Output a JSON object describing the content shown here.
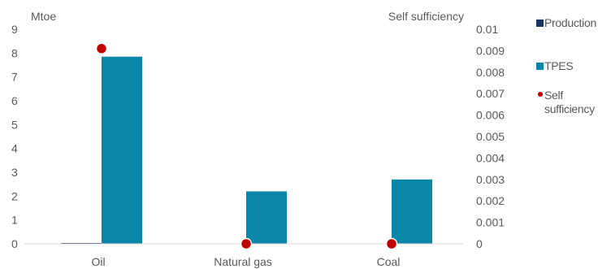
{
  "chart_data": {
    "type": "bar",
    "categories": [
      "Oil",
      "Natural gas",
      "Coal"
    ],
    "series": [
      {
        "name": "Production",
        "axis": "left",
        "kind": "bar",
        "color": "#17375e",
        "values": [
          0.02,
          0.0,
          0.0
        ]
      },
      {
        "name": "TPES",
        "axis": "left",
        "kind": "bar",
        "color": "#0a87a8",
        "values": [
          7.85,
          2.2,
          2.7
        ]
      },
      {
        "name": "Self sufficiency",
        "axis": "right",
        "kind": "marker",
        "color": "#c00000",
        "values": [
          0.0091,
          0.0,
          0.0
        ]
      }
    ],
    "y_left": {
      "label": "Mtoe",
      "ylim": [
        0,
        9
      ],
      "ticks": [
        "0",
        "1",
        "2",
        "3",
        "4",
        "5",
        "6",
        "7",
        "8",
        "9"
      ]
    },
    "y_right": {
      "label": "Self sufficiency",
      "ylim": [
        0,
        0.01
      ],
      "ticks": [
        "0",
        "0.001",
        "0.002",
        "0.003",
        "0.004",
        "0.005",
        "0.006",
        "0.007",
        "0.008",
        "0.009",
        "0.01"
      ]
    },
    "grid": false,
    "legend_position": "right",
    "legend": [
      {
        "label": "Production",
        "kind": "square",
        "color": "#17375e"
      },
      {
        "label": "TPES",
        "kind": "square",
        "color": "#0a87a8"
      },
      {
        "label": "Self sufficiency",
        "kind": "circle",
        "color": "#c00000"
      }
    ]
  }
}
